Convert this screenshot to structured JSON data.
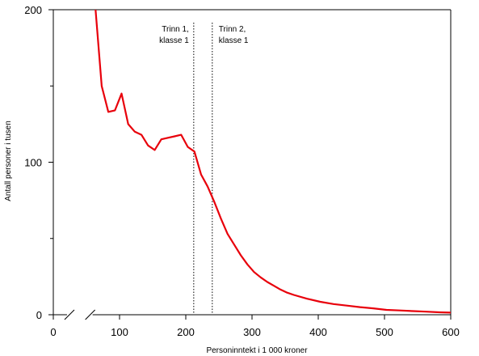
{
  "chart_data": {
    "type": "line",
    "title": "",
    "xlabel": "Personinntekt i 1 000 kroner",
    "ylabel": "Antall personer i tusen",
    "xlim": [
      0,
      600
    ],
    "ylim": [
      0,
      200
    ],
    "x_ticks": [
      0,
      100,
      200,
      300,
      400,
      500,
      600
    ],
    "y_ticks": [
      0,
      100,
      200
    ],
    "y_minor_ticks": [
      50,
      150
    ],
    "grid": false,
    "legend": "none",
    "axis_break": true,
    "series": [
      {
        "color": "#e8000b",
        "x": [
          63,
          73,
          83,
          93,
          103,
          113,
          123,
          133,
          143,
          153,
          163,
          173,
          183,
          193,
          203,
          213,
          223,
          233,
          243,
          253,
          263,
          273,
          283,
          293,
          303,
          313,
          323,
          333,
          343,
          353,
          363,
          383,
          403,
          423,
          443,
          463,
          483,
          503,
          523,
          543,
          563,
          583,
          600
        ],
        "y": [
          204,
          150,
          133,
          134,
          145,
          125,
          120,
          118,
          111,
          108,
          115,
          116,
          117,
          118,
          110,
          107,
          92,
          84,
          74,
          63,
          53,
          46,
          39,
          33,
          28,
          24.5,
          21.5,
          19,
          16.5,
          14.5,
          13,
          10.5,
          8.5,
          7,
          6,
          5,
          4.2,
          3.2,
          2.8,
          2.4,
          2,
          1.6,
          1.4
        ]
      }
    ],
    "annotations": [
      {
        "x": 212,
        "lines": [
          "Trinn 1,",
          "klasse 1"
        ],
        "label_side": "left"
      },
      {
        "x": 240,
        "lines": [
          "Trinn 2,",
          "klasse 1"
        ],
        "label_side": "right"
      }
    ]
  }
}
